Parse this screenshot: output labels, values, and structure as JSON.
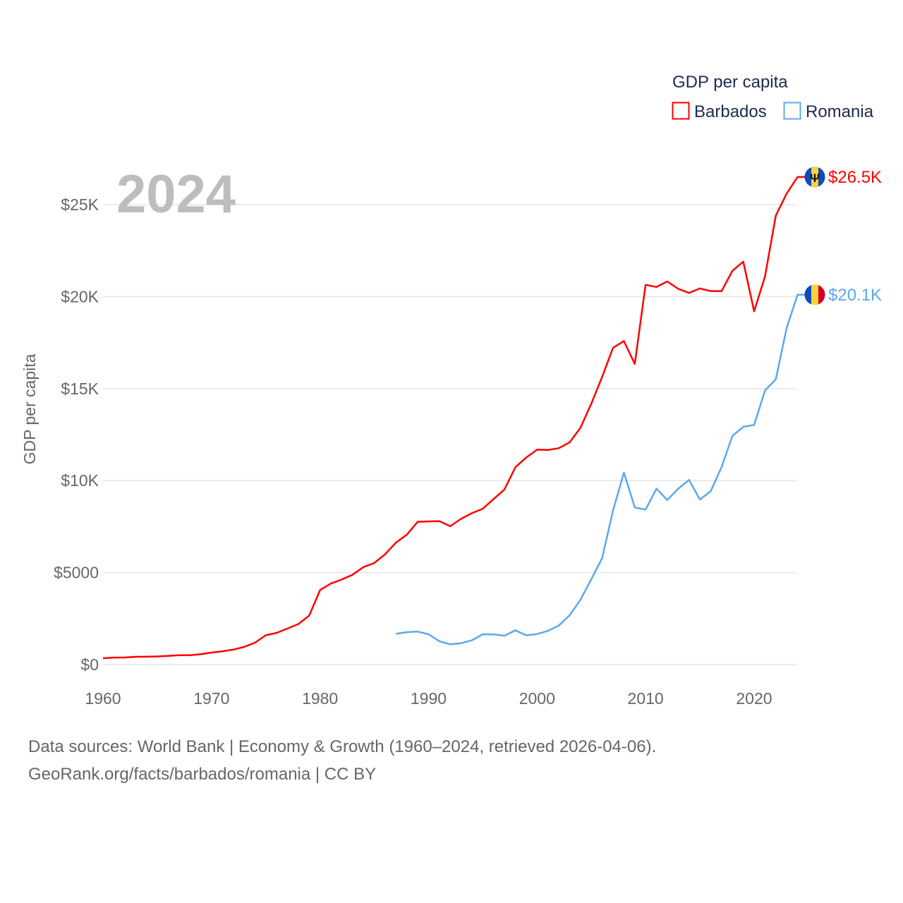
{
  "chart_data": {
    "type": "line",
    "title": "GDP per capita",
    "year_label": "2024",
    "xlabel": "",
    "ylabel": "GDP per capita",
    "xlim": [
      1960,
      2024
    ],
    "ylim": [
      0,
      27500
    ],
    "x_ticks": [
      1960,
      1970,
      1980,
      1990,
      2000,
      2010,
      2020
    ],
    "x_tick_labels": [
      "1960",
      "1970",
      "1980",
      "1990",
      "2000",
      "2010",
      "2020"
    ],
    "y_ticks": [
      0,
      5000,
      10000,
      15000,
      20000,
      25000
    ],
    "y_tick_labels": [
      "$0",
      "$5000",
      "$10K",
      "$15K",
      "$20K",
      "$25K"
    ],
    "grid": true,
    "legend_position": "top-right",
    "series": [
      {
        "name": "Barbados",
        "color": "#ff0000",
        "end_label": "$26.5K",
        "flag": "barbados-flag",
        "start_year": 1960,
        "values": [
          345,
          380,
          385,
          420,
          425,
          440,
          470,
          510,
          510,
          560,
          650,
          720,
          810,
          960,
          1190,
          1590,
          1720,
          1960,
          2200,
          2660,
          4050,
          4400,
          4620,
          4880,
          5300,
          5520,
          6000,
          6630,
          7060,
          7760,
          7780,
          7790,
          7520,
          7920,
          8230,
          8470,
          9000,
          9520,
          10720,
          11250,
          11680,
          11660,
          11760,
          12080,
          12870,
          14180,
          15640,
          17220,
          17580,
          16340,
          20640,
          20520,
          20820,
          20420,
          20200,
          20440,
          20300,
          20300,
          21400,
          21900,
          19200,
          21100,
          24400,
          25600,
          26500
        ]
      },
      {
        "name": "Romania",
        "color": "#5ea8ec",
        "end_label": "$20.1K",
        "flag": "romania-flag",
        "start_year": 1987,
        "values": [
          1670,
          1760,
          1790,
          1650,
          1260,
          1100,
          1160,
          1320,
          1650,
          1640,
          1570,
          1860,
          1590,
          1660,
          1830,
          2120,
          2680,
          3520,
          4640,
          5790,
          8380,
          10430,
          8540,
          8420,
          9560,
          8940,
          9550,
          10040,
          8970,
          9420,
          10730,
          12430,
          12920,
          13020,
          14900,
          15500,
          18300,
          20100
        ]
      }
    ]
  },
  "footer": {
    "line1": "Data sources: World Bank | Economy & Growth (1960–2024, retrieved 2026-04-06).",
    "line2": "GeoRank.org/facts/barbados/romania | CC BY"
  }
}
